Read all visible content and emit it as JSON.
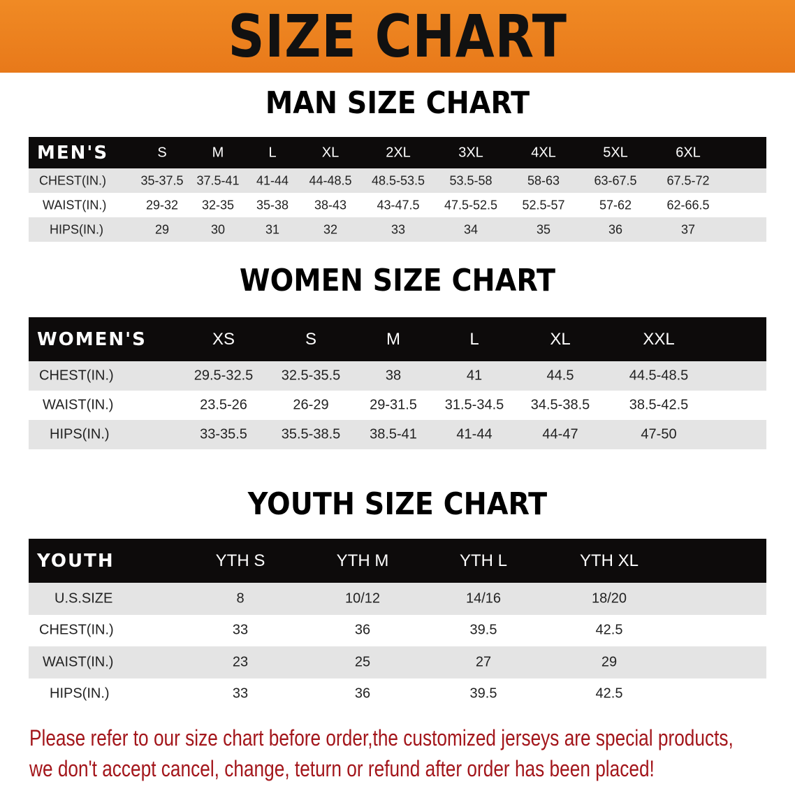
{
  "banner": {
    "title": "SIZE CHART"
  },
  "men": {
    "title": "MAN SIZE CHART",
    "header": "MEN'S",
    "sizes": [
      "S",
      "M",
      "L",
      "XL",
      "2XL",
      "3XL",
      "4XL",
      "5XL",
      "6XL"
    ],
    "rows": [
      {
        "label": "CHEST(IN.)",
        "values": [
          "35-37.5",
          "37.5-41",
          "41-44",
          "44-48.5",
          "48.5-53.5",
          "53.5-58",
          "58-63",
          "63-67.5",
          "67.5-72"
        ]
      },
      {
        "label": "WAIST(IN.)",
        "values": [
          "29-32",
          "32-35",
          "35-38",
          "38-43",
          "43-47.5",
          "47.5-52.5",
          "52.5-57",
          "57-62",
          "62-66.5"
        ]
      },
      {
        "label": "HIPS(IN.)",
        "values": [
          "29",
          "30",
          "31",
          "32",
          "33",
          "34",
          "35",
          "36",
          "37"
        ]
      }
    ]
  },
  "women": {
    "title": "WOMEN SIZE CHART",
    "header": "WOMEN'S",
    "sizes": [
      "XS",
      "S",
      "M",
      "L",
      "XL",
      "XXL"
    ],
    "rows": [
      {
        "label": "CHEST(IN.)",
        "values": [
          "29.5-32.5",
          "32.5-35.5",
          "38",
          "41",
          "44.5",
          "44.5-48.5"
        ]
      },
      {
        "label": "WAIST(IN.)",
        "values": [
          "23.5-26",
          "26-29",
          "29-31.5",
          "31.5-34.5",
          "34.5-38.5",
          "38.5-42.5"
        ]
      },
      {
        "label": "HIPS(IN.)",
        "values": [
          "33-35.5",
          "35.5-38.5",
          "38.5-41",
          "41-44",
          "44-47",
          "47-50"
        ]
      }
    ]
  },
  "youth": {
    "title": "YOUTH SIZE CHART",
    "header": "YOUTH",
    "sizes": [
      "YTH S",
      "YTH M",
      "YTH L",
      "YTH XL"
    ],
    "rows": [
      {
        "label": "U.S.SIZE",
        "values": [
          "8",
          "10/12",
          "14/16",
          "18/20"
        ]
      },
      {
        "label": "CHEST(IN.)",
        "values": [
          "33",
          "36",
          "39.5",
          "42.5"
        ]
      },
      {
        "label": "WAIST(IN.)",
        "values": [
          "23",
          "25",
          "27",
          "29"
        ]
      },
      {
        "label": "HIPS(IN.)",
        "values": [
          "33",
          "36",
          "39.5",
          "42.5"
        ]
      }
    ]
  },
  "notice": {
    "line1": "Please refer to our size chart before order,the customized jerseys are special products,",
    "line2": "we don't accept cancel, change, teturn or refund after order has been placed!"
  },
  "colors": {
    "banner": "#ee8420",
    "header_row": "#0d0b0b",
    "stripe": "#e4e4e4",
    "notice": "#a3161b"
  }
}
